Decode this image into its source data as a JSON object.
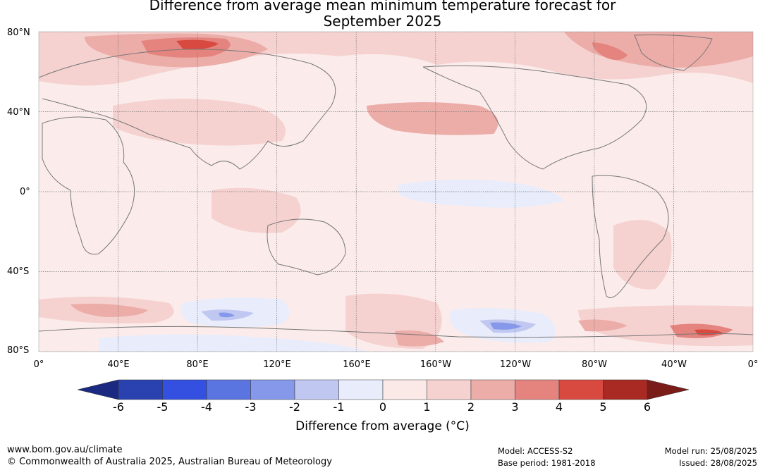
{
  "title": {
    "line1": "Difference from average mean minimum temperature forecast for",
    "line2": "September 2025"
  },
  "axes": {
    "lat_labels": [
      "80°N",
      "40°N",
      "0°",
      "40°S",
      "80°S"
    ],
    "lon_labels": [
      "0°",
      "40°E",
      "80°E",
      "120°E",
      "160°E",
      "160°W",
      "120°W",
      "80°W",
      "40°W",
      "0°"
    ]
  },
  "colorbar": {
    "ticks": [
      "-6",
      "-5",
      "-4",
      "-3",
      "-2",
      "-1",
      "0",
      "1",
      "2",
      "3",
      "4",
      "5",
      "6"
    ],
    "colors": [
      "#2a42b0",
      "#3350e0",
      "#5a74e0",
      "#8698ea",
      "#c0c8f2",
      "#e8ecfb",
      "#fbe9e8",
      "#f5d2d0",
      "#ecaca8",
      "#e5847e",
      "#d84a40",
      "#a82a22"
    ],
    "under_color": "#1b2a80",
    "over_color": "#7a1c18",
    "title": "Difference from average (°C)"
  },
  "map": {
    "ocean_base_color": "#fbeceb",
    "grid_color": "#7a7a7a",
    "coast_color": "#777777"
  },
  "footer": {
    "website": "www.bom.gov.au/climate",
    "copyright": "© Commonwealth of Australia 2025, Australian Bureau of Meteorology",
    "model": "Model: ACCESS-S2",
    "base_period": "Base period: 1981-2018",
    "model_run": "Model run: 25/08/2025",
    "issued": "Issued: 28/08/2025"
  }
}
